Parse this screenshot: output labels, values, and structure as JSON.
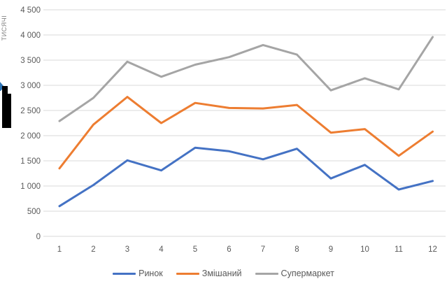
{
  "chart_data": {
    "type": "line",
    "title": "",
    "axis_title_y": "ТИСЯЧІ",
    "xlabel": "",
    "ylabel": "ТИСЯЧІ",
    "x": [
      1,
      2,
      3,
      4,
      5,
      6,
      7,
      8,
      9,
      10,
      11,
      12
    ],
    "xtick_labels": [
      "1",
      "2",
      "3",
      "4",
      "5",
      "6",
      "7",
      "8",
      "9",
      "10",
      "11",
      "12"
    ],
    "series": [
      {
        "name": "Ринок",
        "color": "#4472C4",
        "values": [
          600,
          1020,
          1510,
          1310,
          1760,
          1690,
          1530,
          1740,
          1150,
          1420,
          930,
          1100
        ]
      },
      {
        "name": "Змішаний",
        "color": "#ED7D31",
        "values": [
          1350,
          2220,
          2770,
          2250,
          2650,
          2550,
          2540,
          2610,
          2060,
          2130,
          1600,
          2080
        ]
      },
      {
        "name": "Супермаркет",
        "color": "#A5A5A5",
        "values": [
          2290,
          2750,
          3470,
          3170,
          3410,
          3560,
          3800,
          3610,
          2900,
          3140,
          2920,
          3960
        ]
      }
    ],
    "ylim": [
      0,
      4500
    ],
    "ytick_step": 500,
    "ytick_labels": [
      "0",
      "500",
      "1 000",
      "1 500",
      "2 000",
      "2 500",
      "3 000",
      "3 500",
      "4 000",
      "4 500"
    ],
    "grid": "horizontal-only",
    "gridline_color": "#D9D9D9",
    "text_color": "#595959",
    "legend_position": "bottom"
  }
}
